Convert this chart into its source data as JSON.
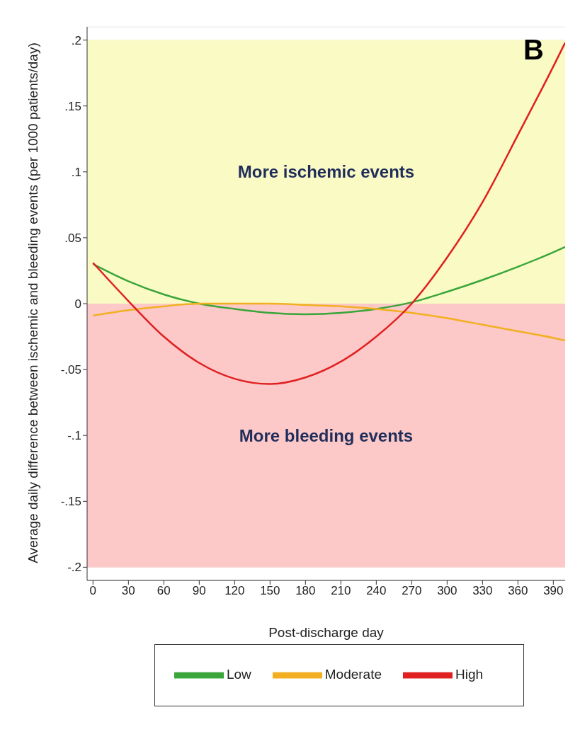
{
  "chart_data": {
    "type": "line",
    "xlabel": "Post-discharge day",
    "ylabel": "Average daily difference between ischemic and bleeding events (per 1000 patients/day)",
    "annotations": [
      "B"
    ],
    "x": [
      0,
      30,
      60,
      90,
      120,
      150,
      180,
      210,
      240,
      270,
      300,
      330,
      360,
      390,
      400
    ],
    "series": [
      {
        "name": "Low",
        "color": "#3aa53a",
        "values": [
          0.03,
          0.017,
          0.007,
          0.0,
          -0.004,
          -0.007,
          -0.008,
          -0.007,
          -0.004,
          0.001,
          0.009,
          0.018,
          0.028,
          0.039,
          0.043
        ]
      },
      {
        "name": "Moderate",
        "color": "#f2b020",
        "values": [
          -0.009,
          -0.005,
          -0.002,
          0.0,
          0.0,
          0.0,
          -0.001,
          -0.002,
          -0.004,
          -0.007,
          -0.011,
          -0.016,
          -0.021,
          -0.026,
          -0.028
        ]
      },
      {
        "name": "High",
        "color": "#e02020",
        "values": [
          0.031,
          0.002,
          -0.025,
          -0.045,
          -0.057,
          -0.061,
          -0.056,
          -0.044,
          -0.025,
          0.0,
          0.035,
          0.077,
          0.128,
          0.18,
          0.198
        ]
      }
    ],
    "xlim": [
      -5,
      400
    ],
    "xticks": [
      0,
      30,
      60,
      90,
      120,
      150,
      180,
      210,
      240,
      270,
      300,
      330,
      360,
      390
    ],
    "ylim": [
      -0.21,
      0.21
    ],
    "yticks": [
      {
        "value": -0.2,
        "label": "-.2"
      },
      {
        "value": -0.15,
        "label": "-.15"
      },
      {
        "value": -0.1,
        "label": "-.1"
      },
      {
        "value": -0.05,
        "label": "-.05"
      },
      0,
      {
        "value": 0.05,
        "label": ".05"
      },
      {
        "value": 0.1,
        "label": ".1"
      },
      {
        "value": 0.15,
        "label": ".15"
      },
      {
        "value": 0.2,
        "label": ".2"
      }
    ],
    "bands": [
      {
        "axis": "y",
        "from": 0,
        "to": 0.2,
        "label": "More ischemic events",
        "color": "#fafac4"
      },
      {
        "axis": "y",
        "from": -0.2,
        "to": 0,
        "label": "More bleeding events",
        "color": "#fcc8c8"
      }
    ],
    "grid": "y",
    "legend": "bottom",
    "marker": "none",
    "line_style": "solid"
  }
}
